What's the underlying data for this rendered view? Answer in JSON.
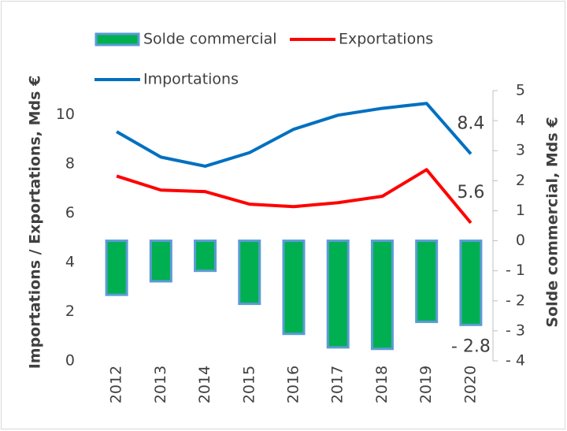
{
  "chart_data": {
    "type": "combo",
    "categories": [
      "2012",
      "2013",
      "2014",
      "2015",
      "2016",
      "2017",
      "2018",
      "2019",
      "2020"
    ],
    "series": [
      {
        "name": "Solde commercial",
        "type": "bar",
        "axis": "y2",
        "color": "#00b050",
        "edge_color": "#5b9bd5",
        "values": [
          -1.8,
          -1.35,
          -1.0,
          -2.1,
          -3.1,
          -3.55,
          -3.6,
          -2.7,
          -2.8
        ],
        "value_labels": [
          null,
          null,
          null,
          null,
          null,
          null,
          null,
          null,
          "- 2.8"
        ]
      },
      {
        "name": "Exportations",
        "type": "line",
        "color": "#ff0000",
        "values": [
          7.5,
          6.93,
          6.87,
          6.36,
          6.26,
          6.42,
          6.68,
          7.76,
          5.6
        ],
        "value_labels": [
          null,
          null,
          null,
          null,
          null,
          null,
          null,
          null,
          "5.6"
        ]
      },
      {
        "name": "Importations",
        "type": "line",
        "color": "#0070c0",
        "values": [
          9.3,
          8.27,
          7.9,
          8.45,
          9.4,
          9.97,
          10.25,
          10.45,
          8.4
        ],
        "value_labels": [
          null,
          null,
          null,
          null,
          null,
          null,
          null,
          null,
          "8.4"
        ]
      }
    ],
    "ylabel": "Importations / Exportations, Mds €",
    "y2label": "Solde commercial, Mds €",
    "ylim": [
      0,
      11
    ],
    "yticks": [
      0,
      2,
      4,
      6,
      8,
      10
    ],
    "y2lim": [
      -4,
      5
    ],
    "y2ticks": [
      {
        "value": -4,
        "label": "- 4"
      },
      {
        "value": -3,
        "label": "- 3"
      },
      {
        "value": -2,
        "label": "- 2"
      },
      {
        "value": -1,
        "label": "- 1"
      },
      0,
      1,
      2,
      3,
      4,
      5
    ],
    "grid": false,
    "legend": "top"
  }
}
